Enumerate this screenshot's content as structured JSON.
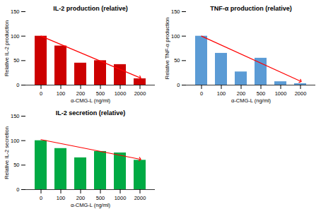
{
  "chart_data": [
    {
      "type": "bar",
      "title": "IL-2 production (relative)",
      "xlabel": "α-CMG-L (ng/ml)",
      "ylabel": "Relative IL-2 production",
      "categories": [
        "0",
        "100",
        "200",
        "500",
        "1000",
        "2000"
      ],
      "values": [
        100,
        80,
        45,
        50,
        42,
        13
      ],
      "color": "#cc0000",
      "trend_line": {
        "type": "line",
        "categories": [
          "0",
          "2000"
        ],
        "values": [
          100,
          15
        ],
        "color": "red",
        "marker": "arrow"
      },
      "ylim": [
        0,
        150
      ],
      "yticks": [
        0,
        50,
        100,
        150
      ],
      "grid": false
    },
    {
      "type": "bar",
      "title": "TNF-α production (relative)",
      "xlabel": "α-CMG-L (ng/ml)",
      "ylabel": "Relative TNF-α production",
      "categories": [
        "0",
        "100",
        "200",
        "500",
        "1000",
        "2000"
      ],
      "values": [
        100,
        65,
        27,
        55,
        7,
        3
      ],
      "color": "#5b9bd5",
      "trend_line": {
        "type": "line",
        "categories": [
          "0",
          "2000"
        ],
        "values": [
          100,
          8
        ],
        "color": "red",
        "marker": "arrow"
      },
      "ylim": [
        0,
        150
      ],
      "yticks": [
        0,
        50,
        100,
        150
      ],
      "grid": false
    },
    {
      "type": "bar",
      "title": "IL-2 secretion (relative)",
      "xlabel": "α-CMG-L (ng/ml)",
      "ylabel": "Relative IL-2 secretion",
      "categories": [
        "0",
        "100",
        "200",
        "500",
        "1000",
        "2000"
      ],
      "values": [
        100,
        84,
        65,
        78,
        75,
        60
      ],
      "color": "#00aa44",
      "trend_line": {
        "type": "line",
        "categories": [
          "0",
          "2000"
        ],
        "values": [
          102,
          62
        ],
        "color": "red",
        "marker": "arrow"
      },
      "ylim": [
        0,
        150
      ],
      "yticks": [
        0,
        50,
        100,
        150
      ],
      "grid": false
    }
  ]
}
